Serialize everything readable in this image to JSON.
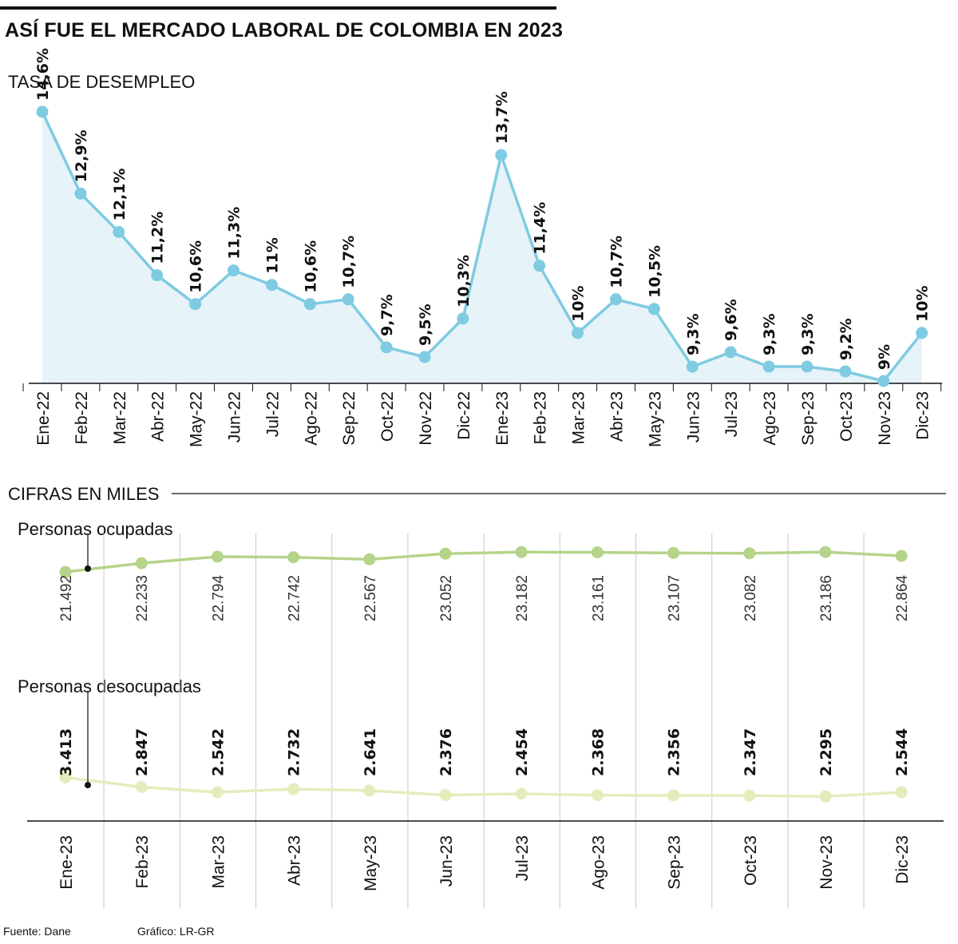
{
  "title": "ASÍ FUE EL MERCADO LABORAL DE COLOMBIA EN 2023",
  "source": "Fuente: Dane",
  "credit": "Gráfico: LR-GR",
  "colors": {
    "line_blue": "#7fcbe2",
    "fill_blue": "#e6f3f9",
    "line_green": "#b5d48a",
    "line_lightgreen": "#e3edbb"
  },
  "chart_data": [
    {
      "type": "area",
      "title": "TASA DE DESEMPLEO",
      "categories": [
        "Ene-22",
        "Feb-22",
        "Mar-22",
        "Abr-22",
        "May-22",
        "Jun-22",
        "Jul-22",
        "Ago-22",
        "Sep-22",
        "Oct-22",
        "Nov-22",
        "Dic-22",
        "Ene-23",
        "Feb-23",
        "Mar-23",
        "Abr-23",
        "May-23",
        "Jun-23",
        "Jul-23",
        "Ago-23",
        "Sep-23",
        "Oct-23",
        "Nov-23",
        "Dic-23"
      ],
      "values": [
        14.6,
        12.9,
        12.1,
        11.2,
        10.6,
        11.3,
        11.0,
        10.6,
        10.7,
        9.7,
        9.5,
        10.3,
        13.7,
        11.4,
        10.0,
        10.7,
        10.5,
        9.3,
        9.6,
        9.3,
        9.3,
        9.2,
        9.0,
        10.0
      ],
      "labels": [
        "14,6%",
        "12,9%",
        "12,1%",
        "11,2%",
        "10,6%",
        "11,3%",
        "11%",
        "10,6%",
        "10,7%",
        "9,7%",
        "9,5%",
        "10,3%",
        "13,7%",
        "11,4%",
        "10%",
        "10,7%",
        "10,5%",
        "9,3%",
        "9,6%",
        "9,3%",
        "9,3%",
        "9,2%",
        "9%",
        "10%"
      ],
      "ylabel": "%"
    },
    {
      "type": "line",
      "title": "CIFRAS EN MILES",
      "categories": [
        "Ene-23",
        "Feb-23",
        "Mar-23",
        "Abr-23",
        "May-23",
        "Jun-23",
        "Jul-23",
        "Ago-23",
        "Sep-23",
        "Oct-23",
        "Nov-23",
        "Dic-23"
      ],
      "series": [
        {
          "name": "Personas ocupadas",
          "values": [
            21492,
            22233,
            22794,
            22742,
            22567,
            23052,
            23182,
            23161,
            23107,
            23082,
            23186,
            22864
          ],
          "labels": [
            "21.492",
            "22.233",
            "22.794",
            "22.742",
            "22.567",
            "23.052",
            "23.182",
            "23.161",
            "23.107",
            "23.082",
            "23.186",
            "22.864"
          ]
        },
        {
          "name": "Personas desocupadas",
          "values": [
            3413,
            2847,
            2542,
            2732,
            2641,
            2376,
            2454,
            2368,
            2356,
            2347,
            2295,
            2544
          ],
          "labels": [
            "3.413",
            "2.847",
            "2.542",
            "2.732",
            "2.641",
            "2.376",
            "2.454",
            "2.368",
            "2.356",
            "2.347",
            "2.295",
            "2.544"
          ]
        }
      ]
    }
  ]
}
